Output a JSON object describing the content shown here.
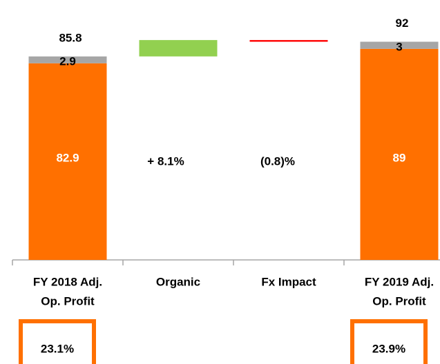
{
  "chart_data": {
    "type": "waterfall",
    "category_lines": [
      [
        "FY 2018 Adj.",
        "Op. Profit"
      ],
      [
        "Organic"
      ],
      [
        "Fx Impact"
      ],
      [
        "FY 2019 Adj.",
        "Op. Profit"
      ]
    ],
    "series": [
      {
        "color": "#ff7000",
        "values": [
          82.9,
          null,
          null,
          89.0
        ]
      },
      {
        "color": "#a6a6a6",
        "values": [
          2.9,
          null,
          null,
          3.0
        ]
      }
    ],
    "totals": [
      85.8,
      null,
      null,
      92.0
    ],
    "changes": [
      null,
      6.9,
      -0.7,
      null
    ],
    "change_colors": [
      null,
      "#92d050",
      "#ff0000",
      null
    ],
    "change_labels": [
      null,
      "+ 8.1%",
      "(0.8)%",
      null
    ],
    "margins": [
      "23.1%",
      null,
      null,
      "23.9%"
    ],
    "ylim": [
      0,
      110
    ]
  }
}
